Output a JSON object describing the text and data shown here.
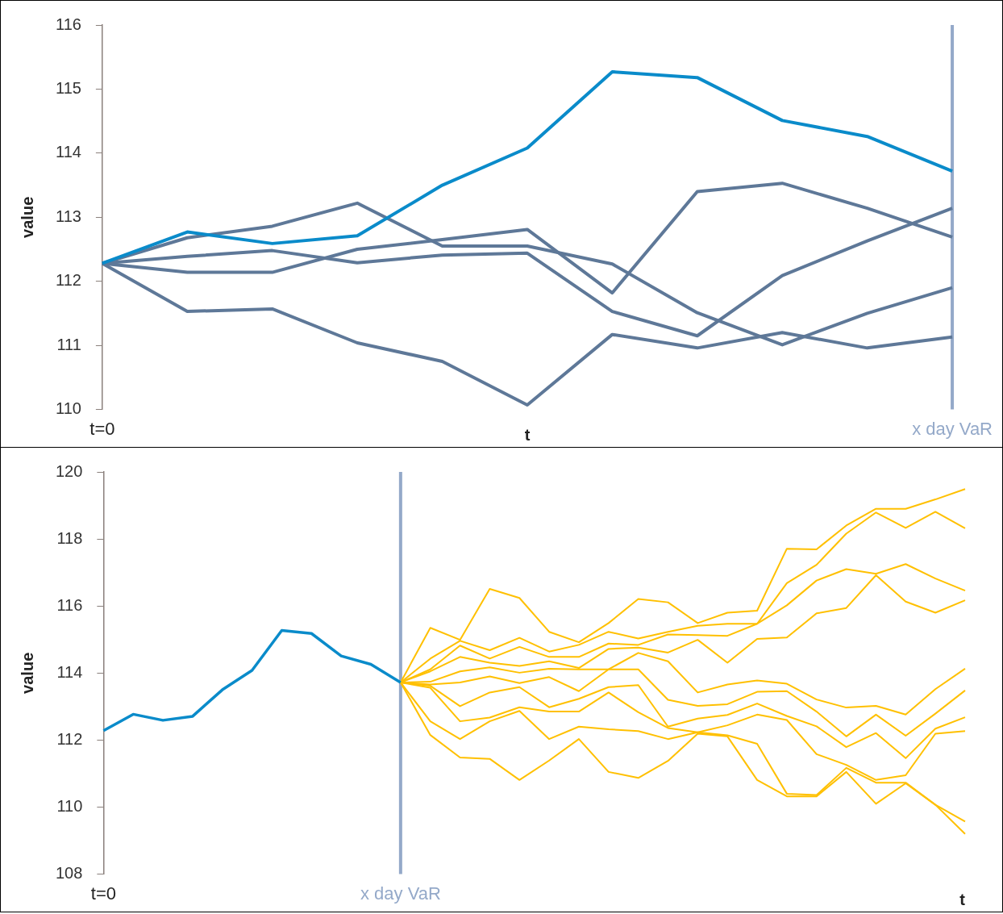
{
  "chart_data": [
    {
      "type": "line",
      "xlabel": "t",
      "ylabel": "value",
      "categories": [
        "t=0",
        null,
        null,
        null,
        null,
        null,
        null,
        null,
        null,
        null,
        "x day VaR"
      ],
      "ylim": [
        110,
        116
      ],
      "yticks": [
        110,
        111,
        112,
        113,
        114,
        115,
        116
      ],
      "marker": "none",
      "ref_lines": [
        {
          "axis": "x",
          "value": "x day VaR",
          "color": "#94a9c9"
        }
      ],
      "series": [
        {
          "color": "#0a8bca",
          "values": [
            112.28,
            112.77,
            112.59,
            112.71,
            113.5,
            114.08,
            115.27,
            115.18,
            114.51,
            114.26,
            113.72
          ]
        },
        {
          "color": "#5e7898",
          "values": [
            112.28,
            112.14,
            112.14,
            112.5,
            112.65,
            112.81,
            111.82,
            113.4,
            113.53,
            113.14,
            112.69
          ]
        },
        {
          "color": "#5e7898",
          "values": [
            112.28,
            112.68,
            112.86,
            113.22,
            112.55,
            112.55,
            112.27,
            111.51,
            111.01,
            111.5,
            111.9
          ]
        },
        {
          "color": "#5e7898",
          "values": [
            112.28,
            112.39,
            112.48,
            112.29,
            112.41,
            112.44,
            111.53,
            111.15,
            112.09,
            112.63,
            113.14
          ]
        },
        {
          "color": "#5e7898",
          "values": [
            112.28,
            111.53,
            111.57,
            111.04,
            110.75,
            110.07,
            111.17,
            110.96,
            111.2,
            110.96,
            111.13
          ]
        }
      ]
    },
    {
      "type": "line",
      "xlabel": "t",
      "ylabel": "value",
      "categories": [
        "t=0",
        null,
        null,
        null,
        null,
        null,
        null,
        null,
        null,
        null,
        "x day VaR",
        null,
        null,
        null,
        null,
        null,
        null,
        null,
        null,
        null,
        null,
        null,
        null,
        null,
        null,
        null,
        null,
        null,
        null,
        null
      ],
      "ylim": [
        108,
        120
      ],
      "yticks": [
        108,
        110,
        112,
        114,
        116,
        118,
        120
      ],
      "marker": "none",
      "ref_lines": [
        {
          "axis": "x",
          "value": "x day VaR",
          "color": "#94a9c9"
        }
      ],
      "series": [
        {
          "color": "#0a8bca",
          "values": [
            112.28,
            112.77,
            112.59,
            112.71,
            113.5,
            114.08,
            115.27,
            115.18,
            114.51,
            114.26,
            113.72,
            null,
            null,
            null,
            null,
            null,
            null,
            null,
            null,
            null,
            null,
            null,
            null,
            null,
            null,
            null,
            null,
            null,
            null,
            null
          ]
        },
        {
          "color": "#ffc000",
          "values": [
            null,
            null,
            null,
            null,
            null,
            null,
            null,
            null,
            null,
            null,
            113.72,
            115.35,
            114.99,
            116.51,
            116.24,
            115.23,
            114.92,
            115.49,
            116.21,
            116.11,
            115.49,
            115.8,
            115.86,
            117.71,
            117.69,
            118.4,
            118.9,
            118.9,
            119.18,
            119.49
          ]
        },
        {
          "color": "#ffc000",
          "values": [
            null,
            null,
            null,
            null,
            null,
            null,
            null,
            null,
            null,
            null,
            113.72,
            114.43,
            114.96,
            114.68,
            115.05,
            114.64,
            114.84,
            115.23,
            115.03,
            115.23,
            115.41,
            115.47,
            115.47,
            116.68,
            117.23,
            118.16,
            118.79,
            118.33,
            118.81,
            118.32
          ]
        },
        {
          "color": "#ffc000",
          "values": [
            null,
            null,
            null,
            null,
            null,
            null,
            null,
            null,
            null,
            null,
            113.72,
            114.11,
            114.82,
            114.43,
            114.78,
            114.48,
            114.48,
            114.88,
            114.84,
            115.15,
            115.13,
            115.11,
            115.47,
            116.02,
            116.76,
            117.1,
            116.96,
            117.25,
            116.82,
            116.46
          ]
        },
        {
          "color": "#ffc000",
          "values": [
            null,
            null,
            null,
            null,
            null,
            null,
            null,
            null,
            null,
            null,
            113.72,
            114.05,
            114.48,
            114.31,
            114.21,
            114.35,
            114.15,
            114.72,
            114.76,
            114.61,
            114.99,
            114.31,
            115.02,
            115.06,
            115.78,
            115.94,
            116.92,
            116.13,
            115.8,
            116.17
          ]
        },
        {
          "color": "#ffc000",
          "values": [
            null,
            null,
            null,
            null,
            null,
            null,
            null,
            null,
            null,
            null,
            113.72,
            113.74,
            114.05,
            114.17,
            114.01,
            114.13,
            114.11,
            114.11,
            114.6,
            114.35,
            113.42,
            113.66,
            113.78,
            113.68,
            113.21,
            112.97,
            113.02,
            112.76,
            113.52,
            114.13
          ]
        },
        {
          "color": "#ffc000",
          "values": [
            null,
            null,
            null,
            null,
            null,
            null,
            null,
            null,
            null,
            null,
            113.72,
            113.66,
            113.72,
            113.9,
            113.7,
            113.88,
            113.46,
            114.11,
            114.11,
            113.2,
            113.02,
            113.07,
            113.44,
            113.46,
            112.85,
            112.11,
            112.76,
            112.13,
            112.79,
            113.48
          ]
        },
        {
          "color": "#ffc000",
          "values": [
            null,
            null,
            null,
            null,
            null,
            null,
            null,
            null,
            null,
            null,
            113.72,
            113.62,
            113.01,
            113.42,
            113.58,
            112.98,
            113.23,
            113.58,
            113.64,
            112.4,
            112.64,
            112.75,
            113.09,
            112.72,
            112.41,
            111.79,
            112.21,
            111.46,
            112.34,
            112.68
          ]
        },
        {
          "color": "#ffc000",
          "values": [
            null,
            null,
            null,
            null,
            null,
            null,
            null,
            null,
            null,
            null,
            113.72,
            113.56,
            112.56,
            112.67,
            112.98,
            112.85,
            112.85,
            113.42,
            112.83,
            112.36,
            112.23,
            112.44,
            112.76,
            112.6,
            111.58,
            111.26,
            110.81,
            110.95,
            112.19,
            112.27
          ]
        },
        {
          "color": "#ffc000",
          "values": [
            null,
            null,
            null,
            null,
            null,
            null,
            null,
            null,
            null,
            null,
            113.72,
            112.56,
            112.03,
            112.56,
            112.87,
            112.03,
            112.4,
            112.32,
            112.27,
            112.03,
            112.23,
            112.14,
            111.89,
            110.4,
            110.36,
            111.17,
            110.73,
            110.73,
            110.07,
            109.57
          ]
        },
        {
          "color": "#ffc000",
          "values": [
            null,
            null,
            null,
            null,
            null,
            null,
            null,
            null,
            null,
            null,
            113.72,
            112.15,
            111.48,
            111.44,
            110.81,
            111.39,
            112.03,
            111.05,
            110.87,
            111.38,
            112.19,
            112.11,
            110.81,
            110.32,
            110.32,
            111.05,
            110.1,
            110.71,
            110.07,
            109.2
          ]
        }
      ]
    }
  ]
}
